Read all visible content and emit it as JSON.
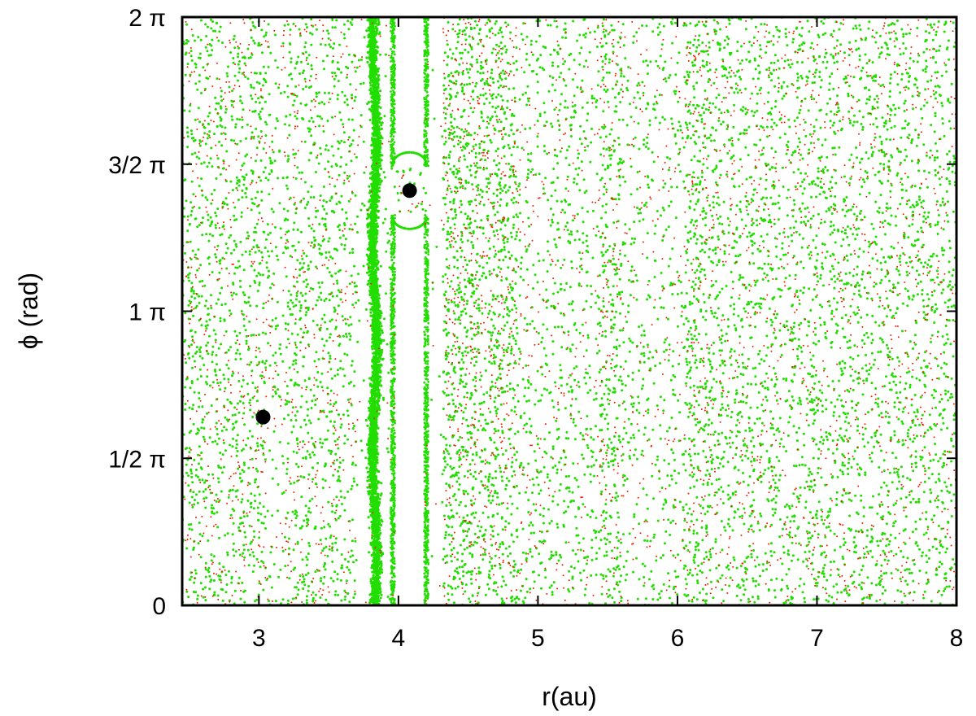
{
  "chart_data": {
    "type": "scatter",
    "title": "",
    "xlabel": "r(au)",
    "ylabel": "ϕ (rad)",
    "xlim": [
      2.45,
      8.0
    ],
    "ylim": [
      0,
      2
    ],
    "y_unit": "π",
    "grid": false,
    "x_ticks": [
      {
        "value": 3,
        "label": "3"
      },
      {
        "value": 4,
        "label": "4"
      },
      {
        "value": 5,
        "label": "5"
      },
      {
        "value": 6,
        "label": "6"
      },
      {
        "value": 7,
        "label": "7"
      },
      {
        "value": 8,
        "label": "8"
      }
    ],
    "y_ticks": [
      {
        "value": 0,
        "label": "0"
      },
      {
        "value": 0.5,
        "label": "1/2 π"
      },
      {
        "value": 1,
        "label": "1 π"
      },
      {
        "value": 1.5,
        "label": "3/2 π"
      },
      {
        "value": 2,
        "label": "2 π"
      }
    ],
    "series": [
      {
        "color": "#22dd00",
        "marker": "dot"
      },
      {
        "color": "#ee2200",
        "marker": "dot"
      },
      {
        "color": "#000000",
        "marker": "large-dot",
        "points": [
          {
            "x": 3.03,
            "y": 0.64
          },
          {
            "x": 4.08,
            "y": 1.41
          }
        ]
      }
    ],
    "features": [
      {
        "kind": "dense-band",
        "color": "#22dd00",
        "x_range": [
          3.75,
          3.9
        ],
        "y_range": [
          0,
          2
        ]
      },
      {
        "kind": "horseshoe-loop",
        "color": "#22dd00",
        "x_range": [
          3.95,
          4.2
        ],
        "y_range": [
          0,
          2
        ]
      }
    ]
  }
}
